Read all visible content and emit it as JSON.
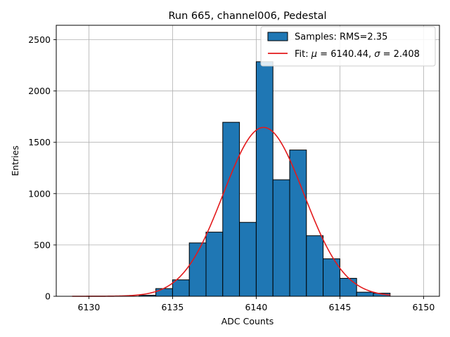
{
  "chart_data": {
    "type": "bar",
    "title": "Run 665, channel006, Pedestal",
    "xlabel": "ADC Counts",
    "ylabel": "Entries",
    "xlim": [
      6128.05,
      6150.95
    ],
    "ylim": [
      0,
      2640
    ],
    "xticks": [
      6130,
      6135,
      6140,
      6145,
      6150
    ],
    "yticks": [
      0,
      500,
      1000,
      1500,
      2000,
      2500
    ],
    "grid": true,
    "legend_position": "top-right",
    "histogram": {
      "name": "Samples: RMS=2.35",
      "bin_width": 1,
      "bin_edges_start": [
        6133,
        6134,
        6135,
        6136,
        6137,
        6138,
        6139,
        6140,
        6141,
        6142,
        6143,
        6144,
        6145,
        6146,
        6147
      ],
      "counts": [
        10,
        75,
        160,
        520,
        625,
        1695,
        720,
        2285,
        1135,
        1425,
        590,
        365,
        175,
        40,
        30
      ],
      "color": "#1f77b4",
      "edgecolor": "#000000"
    },
    "fit": {
      "name_prefix": "Fit: ",
      "mu_symbol": "μ",
      "mu_text": " = 6140.44, ",
      "sigma_symbol": "σ",
      "sigma_text": " = 2.408",
      "mu": 6140.44,
      "sigma": 2.408,
      "amplitude": 1645,
      "x_range": [
        6129,
        6148
      ],
      "color": "#e31a1c"
    }
  }
}
